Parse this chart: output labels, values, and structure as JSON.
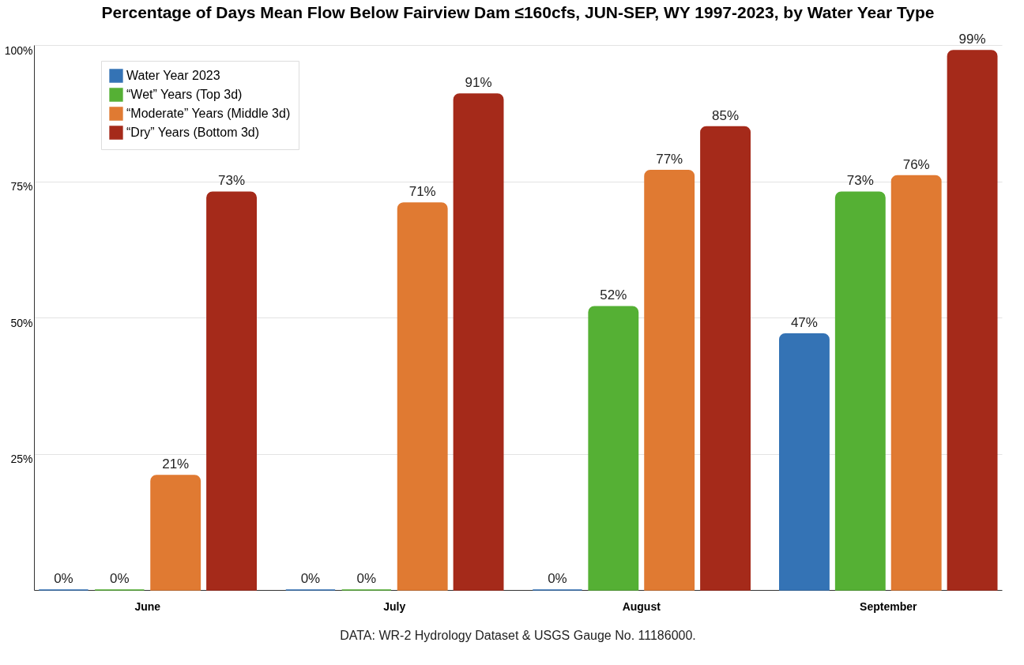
{
  "chart_data": {
    "type": "bar",
    "title": "Percentage of Days Mean Flow Below Fairview Dam ≤160cfs, JUN-SEP, WY 1997-2023, by Water Year Type",
    "categories": [
      "June",
      "July",
      "August",
      "September"
    ],
    "series": [
      {
        "name": "Water Year 2023",
        "color": "#3473b5",
        "values": [
          0,
          0,
          0,
          47
        ],
        "value_labels": [
          "0%",
          "0%",
          "0%",
          "47%"
        ]
      },
      {
        "name": "“Wet” Years (Top 3d)",
        "color": "#55b034",
        "values": [
          0,
          0,
          52,
          73
        ],
        "value_labels": [
          "0%",
          "0%",
          "52%",
          "73%"
        ]
      },
      {
        "name": "“Moderate” Years (Middle 3d)",
        "color": "#e07a32",
        "values": [
          21,
          71,
          77,
          76
        ],
        "value_labels": [
          "21%",
          "71%",
          "77%",
          "76%"
        ]
      },
      {
        "name": "“Dry” Years (Bottom 3d)",
        "color": "#a52a1a",
        "values": [
          73,
          91,
          85,
          99
        ],
        "value_labels": [
          "73%",
          "91%",
          "85%",
          "99%"
        ]
      }
    ],
    "ylim": [
      0,
      100
    ],
    "yticks": [
      {
        "value": 25,
        "label": "25%"
      },
      {
        "value": 50,
        "label": "50%"
      },
      {
        "value": 75,
        "label": "75%"
      },
      {
        "value": 100,
        "label": "100%"
      }
    ],
    "grid": "y",
    "legend": "top left",
    "annotations": [
      "DATA: WR-2 Hydrology Dataset & USGS Gauge No. 11186000."
    ]
  }
}
